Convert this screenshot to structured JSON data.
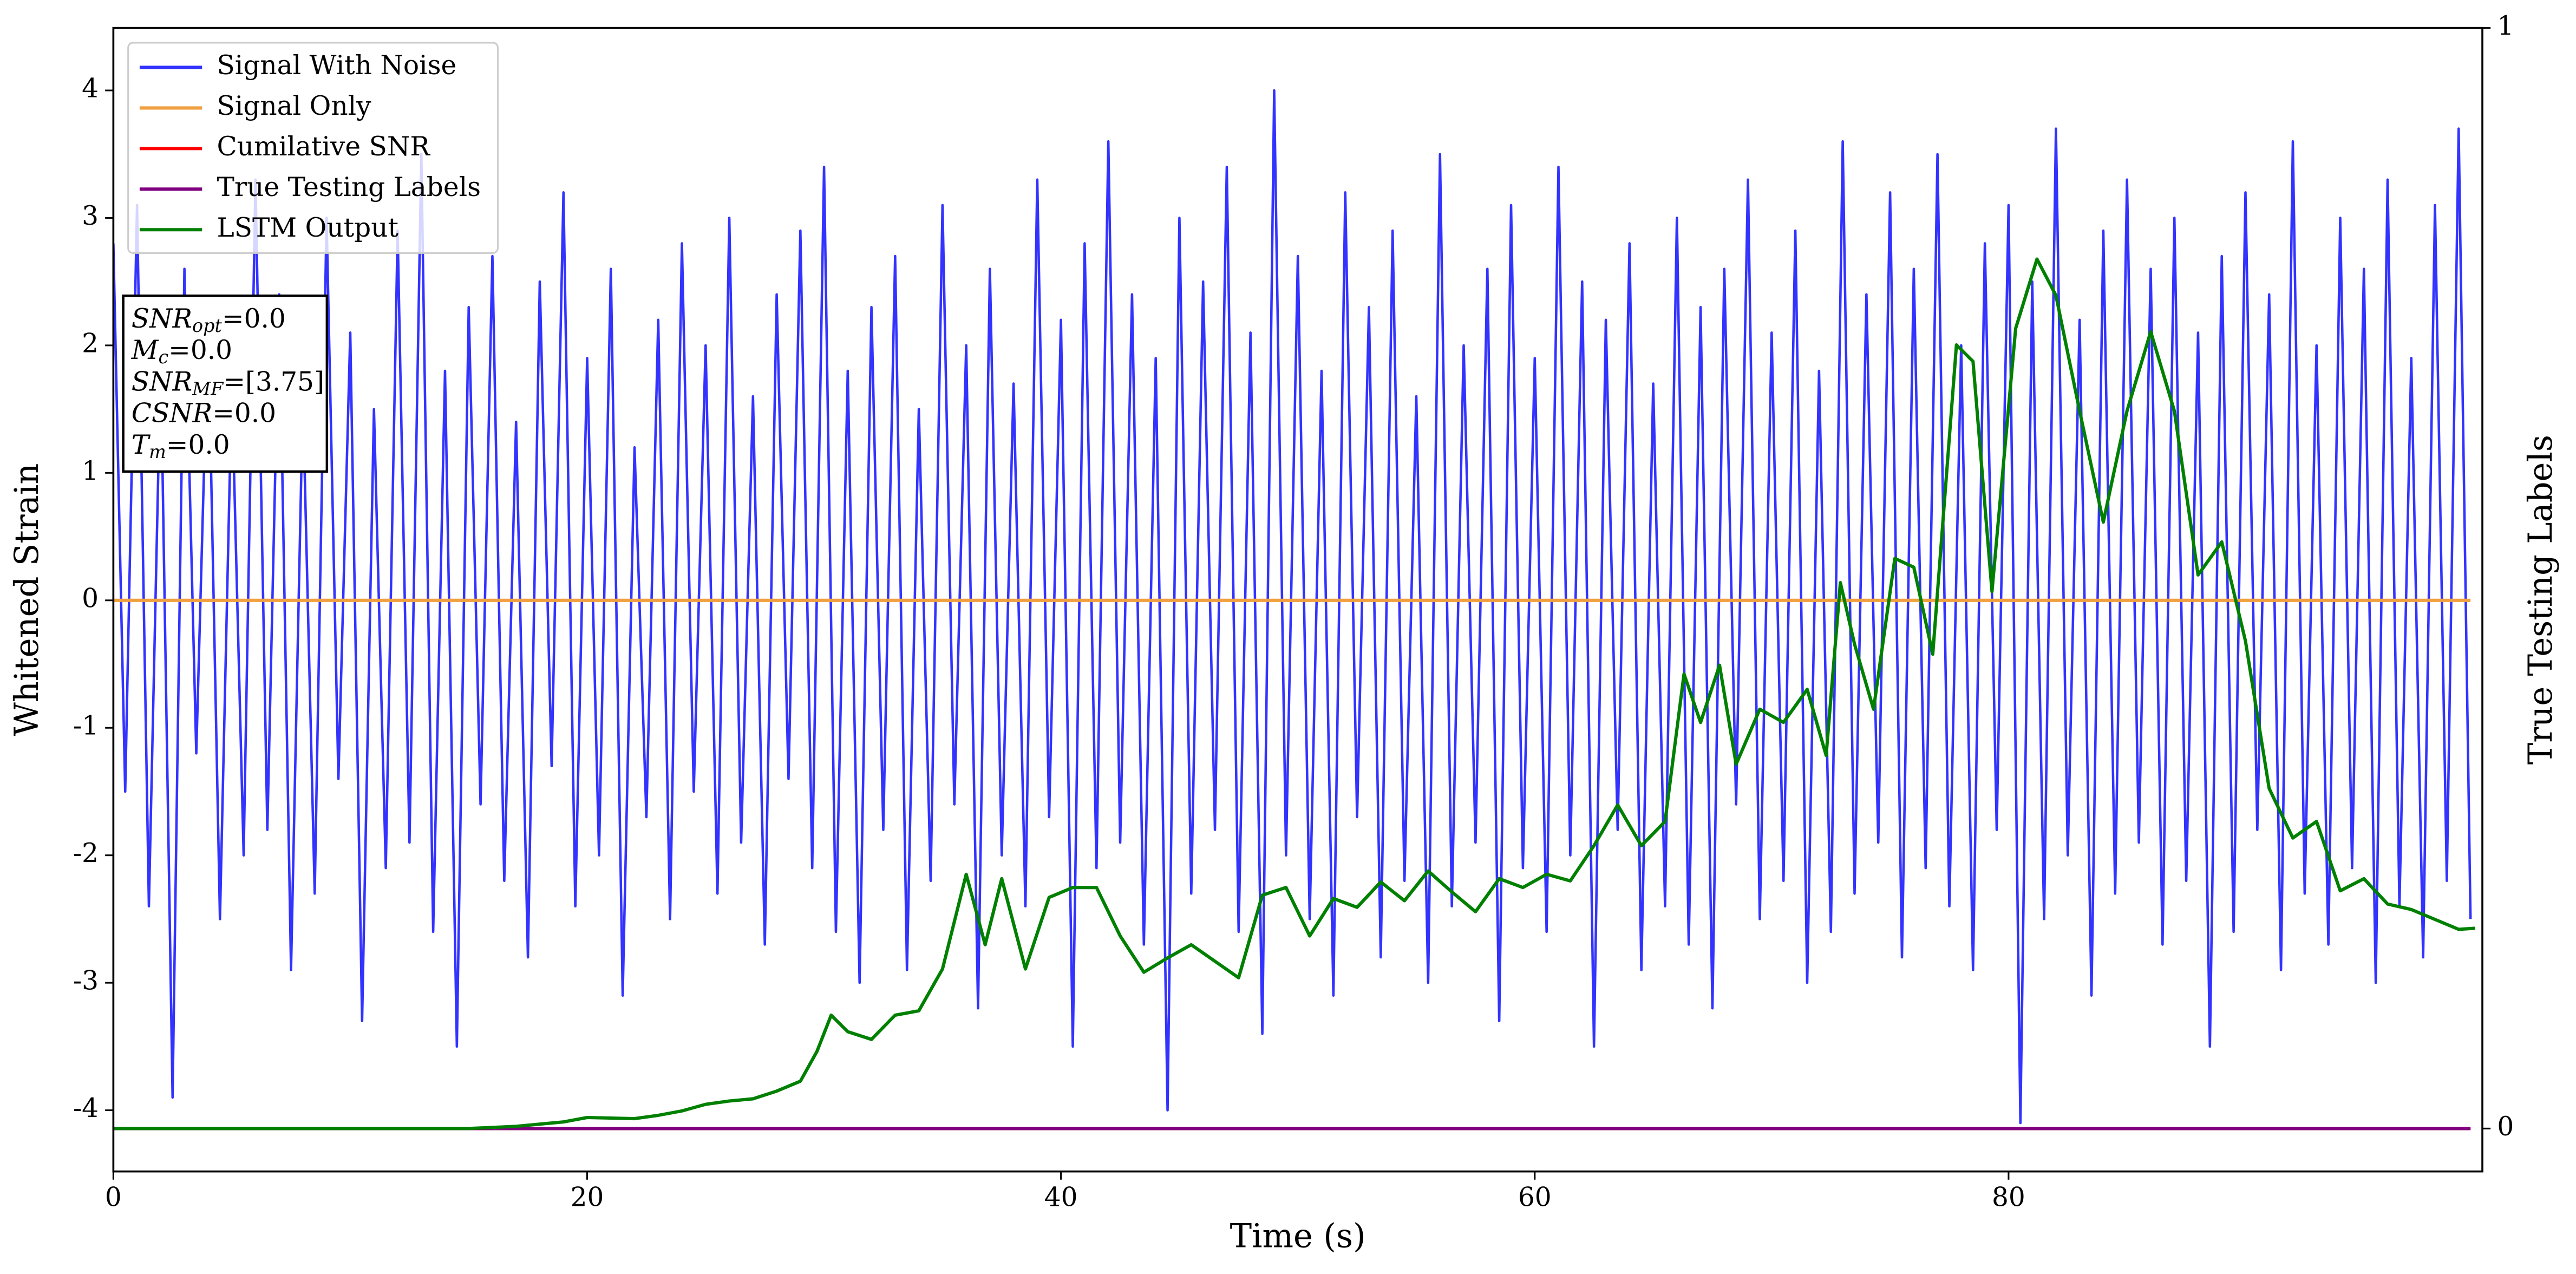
{
  "chart_data": {
    "type": "line",
    "xlabel": "Time (s)",
    "ylabel": "Whitened Strain",
    "y2label": "True Testing Labels",
    "xlim": [
      0,
      100
    ],
    "xticks": [
      0,
      20,
      40,
      60,
      80
    ],
    "ylim": [
      -4.48,
      4.49
    ],
    "yticks": [
      -4,
      -3,
      -2,
      -1,
      0,
      1,
      2,
      3,
      4
    ],
    "y2lim": [
      -0.039,
      1
    ],
    "y2ticks": [
      0,
      1
    ],
    "legend": "upper left",
    "stats": [
      {
        "name": "SNR",
        "sub": "opt",
        "text": "=0.0"
      },
      {
        "name": "M",
        "sub": "c",
        "text": "=0.0"
      },
      {
        "name": "SNR",
        "sub": "MF",
        "text": "=[3.75]"
      },
      {
        "name": "CSNR",
        "sub": null,
        "text": "=0.0"
      },
      {
        "name": "T",
        "sub": "m",
        "text": "=0.0"
      }
    ],
    "series": [
      {
        "name": "Signal With Noise",
        "color": "#3333ff",
        "x": [
          0,
          0.5,
          1,
          1.5,
          2,
          2.5,
          3,
          3.5,
          4,
          4.5,
          5,
          5.5,
          6,
          6.5,
          7,
          7.5,
          8,
          8.5,
          9,
          9.5,
          10,
          10.5,
          11,
          11.5,
          12,
          12.5,
          13,
          13.5,
          14,
          14.5,
          15,
          15.5,
          16,
          16.5,
          17,
          17.5,
          18,
          18.5,
          19,
          19.5,
          20,
          20.5,
          21,
          21.5,
          22,
          22.5,
          23,
          23.5,
          24,
          24.5,
          25,
          25.5,
          26,
          26.5,
          27,
          27.5,
          28,
          28.5,
          29,
          29.5,
          30,
          30.5,
          31,
          31.5,
          32,
          32.5,
          33,
          33.5,
          34,
          34.5,
          35,
          35.5,
          36,
          36.5,
          37,
          37.5,
          38,
          38.5,
          39,
          39.5,
          40,
          40.5,
          41,
          41.5,
          42,
          42.5,
          43,
          43.5,
          44,
          44.5,
          45,
          45.5,
          46,
          46.5,
          47,
          47.5,
          48,
          48.5,
          49,
          49.5,
          50,
          50.5,
          51,
          51.5,
          52,
          52.5,
          53,
          53.5,
          54,
          54.5,
          55,
          55.5,
          56,
          56.5,
          57,
          57.5,
          58,
          58.5,
          59,
          59.5,
          60,
          60.5,
          61,
          61.5,
          62,
          62.5,
          63,
          63.5,
          64,
          64.5,
          65,
          65.5,
          66,
          66.5,
          67,
          67.5,
          68,
          68.5,
          69,
          69.5,
          70,
          70.5,
          71,
          71.5,
          72,
          72.5,
          73,
          73.5,
          74,
          74.5,
          75,
          75.5,
          76,
          76.5,
          77,
          77.5,
          78,
          78.5,
          79,
          79.5,
          80,
          80.5,
          81,
          81.5,
          82,
          82.5,
          83,
          83.5,
          84,
          84.5,
          85,
          85.5,
          86,
          86.5,
          87,
          87.5,
          88,
          88.5,
          89,
          89.5,
          90,
          90.5,
          91,
          91.5,
          92,
          92.5,
          93,
          93.5,
          94,
          94.5,
          95,
          95.5,
          96,
          96.5,
          97,
          97.5,
          98,
          98.5,
          99,
          99.5
        ],
        "values": [
          2.8,
          -1.5,
          3.1,
          -2.4,
          1.9,
          -3.9,
          2.6,
          -1.2,
          2.2,
          -2.5,
          1.7,
          -2.0,
          3.3,
          -1.8,
          2.4,
          -2.9,
          1.6,
          -2.3,
          3.0,
          -1.4,
          2.1,
          -3.3,
          1.5,
          -2.1,
          2.9,
          -1.9,
          3.5,
          -2.6,
          1.8,
          -3.5,
          2.3,
          -1.6,
          2.7,
          -2.2,
          1.4,
          -2.8,
          2.5,
          -1.3,
          3.2,
          -2.4,
          1.9,
          -2.0,
          2.6,
          -3.1,
          1.2,
          -1.7,
          2.2,
          -2.5,
          2.8,
          -1.5,
          2.0,
          -2.3,
          3.0,
          -1.9,
          1.6,
          -2.7,
          2.4,
          -1.4,
          2.9,
          -2.1,
          3.4,
          -2.6,
          1.8,
          -3.0,
          2.3,
          -1.8,
          2.7,
          -2.9,
          1.5,
          -2.2,
          3.1,
          -1.6,
          2.0,
          -3.2,
          2.6,
          -2.0,
          1.7,
          -2.4,
          3.3,
          -1.7,
          2.2,
          -3.5,
          2.8,
          -2.1,
          3.6,
          -1.9,
          2.4,
          -2.7,
          1.9,
          -4.0,
          3.0,
          -2.3,
          2.5,
          -1.8,
          3.4,
          -2.6,
          2.1,
          -3.4,
          4.0,
          -2.0,
          2.7,
          -2.5,
          1.8,
          -3.1,
          3.2,
          -1.7,
          2.3,
          -2.8,
          2.9,
          -2.2,
          1.6,
          -3.0,
          3.5,
          -2.4,
          2.0,
          -1.9,
          2.6,
          -3.3,
          3.1,
          -2.1,
          1.9,
          -2.6,
          3.4,
          -2.0,
          2.5,
          -3.5,
          2.2,
          -1.8,
          2.8,
          -2.9,
          1.7,
          -2.4,
          3.0,
          -2.7,
          2.3,
          -3.2,
          2.6,
          -1.6,
          3.3,
          -2.5,
          2.1,
          -2.2,
          2.9,
          -3.0,
          1.8,
          -2.6,
          3.6,
          -2.3,
          2.4,
          -1.9,
          3.2,
          -2.8,
          2.6,
          -2.1,
          3.5,
          -2.4,
          2.0,
          -2.9,
          2.8,
          -1.8,
          3.1,
          -4.1,
          2.5,
          -2.5,
          3.7,
          -2.0,
          2.2,
          -3.1,
          2.9,
          -2.3,
          3.3,
          -1.9,
          2.6,
          -2.7,
          3.0,
          -2.2,
          2.1,
          -3.5,
          2.7,
          -2.6,
          3.2,
          -1.8,
          2.4,
          -2.9,
          3.6,
          -2.3,
          2.0,
          -2.7,
          3.0,
          -2.1,
          2.6,
          -3.0,
          3.3,
          -2.4,
          1.9,
          -2.8,
          3.1,
          -2.2,
          3.7,
          -2.5
        ]
      },
      {
        "name": "Signal Only",
        "color": "#f0a040",
        "x": [
          0,
          99.5
        ],
        "values": [
          0,
          0
        ]
      },
      {
        "name": "Cumilative SNR",
        "color": "#ff0000",
        "axis": "y2",
        "x": [
          0,
          99.5
        ],
        "values": [
          0,
          0
        ]
      },
      {
        "name": "True Testing Labels",
        "color": "#800080",
        "axis": "y2",
        "x": [
          0,
          99.5
        ],
        "values": [
          0,
          0
        ]
      },
      {
        "name": "LSTM Output",
        "color": "#008000",
        "axis": "y2",
        "x": [
          0,
          15,
          17,
          19,
          20,
          22,
          23,
          24,
          25,
          26,
          27,
          28,
          29,
          29.7,
          30.3,
          31,
          32,
          33,
          34,
          35,
          36,
          36.8,
          37.5,
          38.5,
          39.5,
          40.5,
          41.5,
          42.5,
          43.5,
          44.5,
          45.5,
          46.5,
          47.5,
          48.5,
          49.5,
          50.5,
          51.5,
          52.5,
          53.5,
          54.5,
          55.5,
          56.5,
          57.5,
          58.5,
          59.5,
          60.5,
          61.5,
          62.5,
          63.5,
          64.5,
          65.5,
          66.3,
          67,
          67.8,
          68.5,
          69.5,
          70.5,
          71.5,
          72.3,
          72.9,
          73.5,
          74.3,
          75.2,
          76,
          76.8,
          77.8,
          78.5,
          79.3,
          80.3,
          81.2,
          82,
          83,
          84,
          85,
          86,
          87,
          88,
          89,
          90,
          91,
          92,
          93,
          94,
          95,
          96,
          97,
          98,
          99,
          99.7
        ],
        "values": [
          0,
          0,
          0.002,
          0.006,
          0.01,
          0.009,
          0.012,
          0.016,
          0.022,
          0.025,
          0.027,
          0.034,
          0.043,
          0.07,
          0.103,
          0.088,
          0.081,
          0.103,
          0.107,
          0.145,
          0.231,
          0.167,
          0.227,
          0.145,
          0.21,
          0.219,
          0.219,
          0.175,
          0.142,
          0.155,
          0.167,
          0.152,
          0.137,
          0.212,
          0.219,
          0.175,
          0.209,
          0.201,
          0.224,
          0.207,
          0.234,
          0.215,
          0.197,
          0.227,
          0.219,
          0.231,
          0.225,
          0.257,
          0.294,
          0.257,
          0.279,
          0.413,
          0.369,
          0.421,
          0.331,
          0.381,
          0.369,
          0.399,
          0.339,
          0.496,
          0.44,
          0.381,
          0.518,
          0.51,
          0.431,
          0.712,
          0.697,
          0.488,
          0.727,
          0.79,
          0.757,
          0.652,
          0.551,
          0.652,
          0.724,
          0.652,
          0.503,
          0.533,
          0.443,
          0.309,
          0.264,
          0.279,
          0.216,
          0.227,
          0.204,
          0.199,
          0.19,
          0.181,
          0.182
        ]
      }
    ]
  }
}
